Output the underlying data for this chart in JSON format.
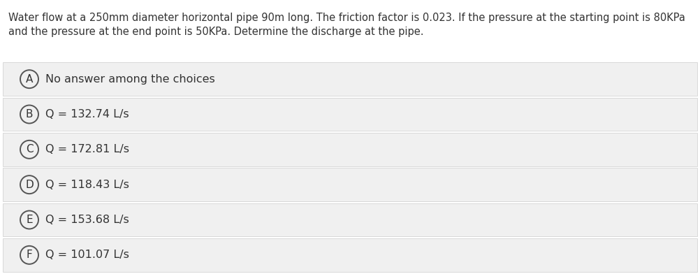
{
  "question_text_line1": "Water flow at a 250mm diameter horizontal pipe 90m long. The friction factor is 0.023. If the pressure at the starting point is 80KPa",
  "question_text_line2": "and the pressure at the end point is 50KPa. Determine the discharge at the pipe.",
  "options": [
    {
      "label": "A",
      "text": "No answer among the choices"
    },
    {
      "label": "B",
      "text": "Q = 132.74 L/s"
    },
    {
      "label": "C",
      "text": "Q = 172.81 L/s"
    },
    {
      "label": "D",
      "text": "Q = 118.43 L/s"
    },
    {
      "label": "E",
      "text": "Q = 153.68 L/s"
    },
    {
      "label": "F",
      "text": "Q = 101.07 L/s"
    }
  ],
  "background_color": "#ffffff",
  "option_bg_color": "#f0f0f0",
  "option_border_color": "#cccccc",
  "text_color": "#333333",
  "circle_edge_color": "#555555",
  "question_fontsize": 10.5,
  "option_fontsize": 11.5,
  "label_fontsize": 11.0,
  "fig_width": 10.02,
  "fig_height": 3.92,
  "dpi": 100
}
